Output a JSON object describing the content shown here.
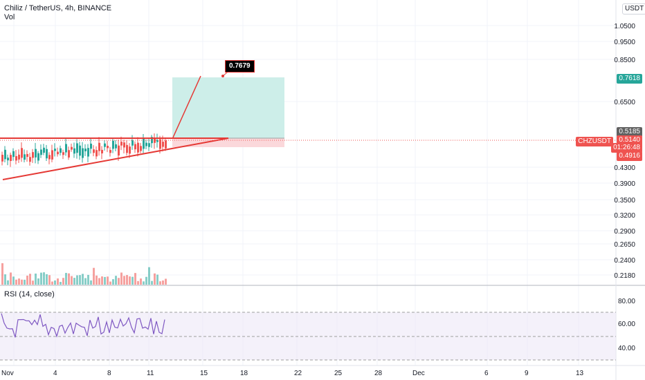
{
  "header": {
    "title": "Chiliz / TetherUS, 4h, BINANCE",
    "volume_label": "Vol",
    "currency_button": "USDT"
  },
  "price_axis": {
    "ticks": [
      "1.0500",
      "0.9500",
      "0.8500",
      "0.6500",
      "0.4300",
      "0.3900",
      "0.3500",
      "0.3200",
      "0.2900",
      "0.2650",
      "0.2400",
      "0.2180"
    ]
  },
  "price_tags": {
    "target": "0.7618",
    "resistance": "0.5185",
    "symbol": "CHZUSDT",
    "last": "0.5140",
    "countdown": "01:26:48",
    "stop": "0.4916"
  },
  "annotation": {
    "target_label": "0.7679"
  },
  "rsi": {
    "label": "RSI (14, close)",
    "ticks": [
      "80.00",
      "60.00",
      "40.00"
    ]
  },
  "time_axis": {
    "labels": [
      "Nov",
      "4",
      "8",
      "11",
      "15",
      "18",
      "22",
      "25",
      "28",
      "Dec",
      "6",
      "9",
      "13"
    ]
  },
  "colors": {
    "up": "#26a69a",
    "down": "#ef5350",
    "rsi_line": "#7e57c2",
    "rsi_band": "#ede7f6",
    "target_zone": "#cdeee9",
    "stop_zone": "#fbd8db",
    "pattern_line": "#e53935"
  }
}
